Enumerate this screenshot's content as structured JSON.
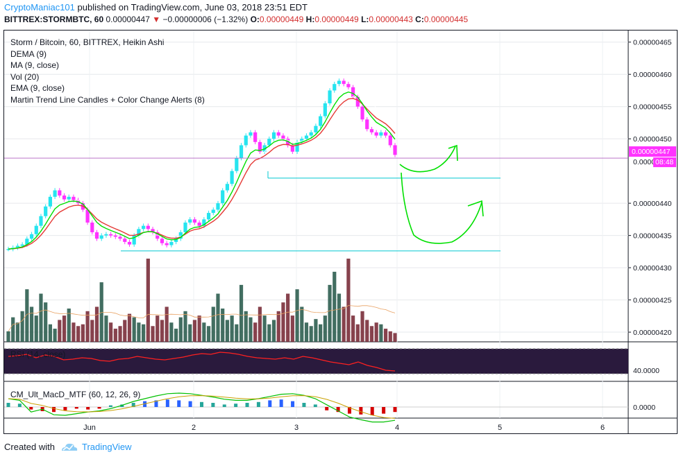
{
  "header": {
    "author": "CryptoManiac101",
    "published": "published on TradingView.com, June 03, 2018 23:51 EDT",
    "symbol": "BITTREX:STORMBTC, 60",
    "last": "0.00000447",
    "change_arrow": "▼",
    "change": "−0.00000006 (−1.32%)",
    "o_label": "O:",
    "o_value": "0.00000449",
    "h_label": "H:",
    "h_value": "0.00000449",
    "l_label": "L:",
    "l_value": "0.00000443",
    "c_label": "C:",
    "c_value": "0.00000445"
  },
  "legend": {
    "title": "Storm / Bitcoin, 60, BITTREX, Heikin Ashi",
    "items": [
      "DEMA (9)",
      "MA (9, close)",
      "Vol (20)",
      "EMA (9, close)",
      "Martin Trend Line Candles + Color Change Alerts (8)"
    ]
  },
  "rsi": {
    "label": "RSI (14, close)",
    "axis_value": "40.0000"
  },
  "macd": {
    "label": "CM_Ult_MacD_MTF (60, 12, 26, 9)",
    "axis_value": "0.0000"
  },
  "price_badge": {
    "value": "0.00000447",
    "countdown": "08:48",
    "obscured_label": "0.0000"
  },
  "footer": {
    "created": "Created with",
    "brand": "TradingView",
    "logo_icon": "tradingview-cloud-icon"
  },
  "colors": {
    "bull": "#26e4ef",
    "bear": "#ff33ff",
    "dema": "#ffffff",
    "ma": "#ffffff",
    "ema": "#e53935",
    "line_green": "#00e000",
    "support": "#00c8d0",
    "grid": "#1c1f2b"
  },
  "chart_data": {
    "type": "candlestick",
    "title": "Storm / Bitcoin, 60, BITTREX, Heikin Ashi",
    "y_ticks": [
      "0.00000465",
      "0.00000460",
      "0.00000455",
      "0.00000450",
      "0.00000440",
      "0.00000435",
      "0.00000430",
      "0.00000425",
      "0.00000420"
    ],
    "x_ticks": [
      "Jun",
      "2",
      "3",
      "4",
      "5",
      "6"
    ],
    "ylim": [
      4.185e-06,
      4.668e-06
    ],
    "current_price": 4.47e-06,
    "support_lines": [
      4.439e-06,
      4.326e-06
    ],
    "close_series": [
      4.329,
      4.331,
      4.334,
      4.336,
      4.345,
      4.352,
      4.365,
      4.38,
      4.395,
      4.41,
      4.42,
      4.412,
      4.406,
      4.41,
      4.405,
      4.4,
      4.39,
      4.37,
      4.355,
      4.345,
      4.35,
      4.352,
      4.35,
      4.348,
      4.345,
      4.34,
      4.336,
      4.35,
      4.36,
      4.365,
      4.36,
      4.355,
      4.345,
      4.338,
      4.335,
      4.34,
      4.345,
      4.355,
      4.37,
      4.375,
      4.37,
      4.365,
      4.375,
      4.385,
      4.39,
      4.4,
      4.42,
      4.43,
      4.45,
      4.47,
      4.49,
      4.505,
      4.51,
      4.495,
      4.48,
      4.49,
      4.5,
      4.51,
      4.505,
      4.5,
      4.49,
      4.48,
      4.495,
      4.5,
      4.505,
      4.51,
      4.52,
      4.535,
      4.555,
      4.575,
      4.585,
      4.59,
      4.585,
      4.58,
      4.565,
      4.55,
      4.53,
      4.515,
      4.51,
      4.505,
      4.51,
      4.505,
      4.49,
      4.475
    ],
    "volume_series": [
      12,
      28,
      22,
      35,
      60,
      40,
      30,
      55,
      45,
      20,
      15,
      25,
      30,
      38,
      22,
      18,
      20,
      35,
      25,
      40,
      68,
      30,
      22,
      15,
      18,
      25,
      32,
      28,
      22,
      20,
      95,
      18,
      30,
      25,
      40,
      22,
      15,
      28,
      35,
      20,
      25,
      30,
      22,
      18,
      40,
      55,
      38,
      25,
      30,
      20,
      65,
      35,
      28,
      22,
      40,
      30,
      20,
      25,
      35,
      45,
      55,
      30,
      60,
      40,
      22,
      18,
      26,
      20,
      30,
      65,
      80,
      55,
      40,
      95,
      30,
      20,
      35,
      25,
      18,
      22,
      20,
      15,
      12,
      10
    ],
    "rsi_series": [
      60,
      61,
      63,
      58,
      62,
      60,
      55,
      56,
      58,
      57,
      54,
      53,
      56,
      57,
      60,
      58,
      56,
      55,
      57,
      59,
      62,
      64,
      63,
      66,
      65,
      63,
      60,
      58,
      57,
      56,
      58,
      56,
      60,
      58,
      55,
      52,
      50,
      48,
      52,
      47,
      44,
      40,
      39
    ],
    "macd_hist": [
      5,
      4,
      -3,
      -5,
      -6,
      -4,
      -2,
      -3,
      -2,
      2,
      3,
      5,
      7,
      8,
      9,
      8,
      7,
      6,
      5,
      3,
      4,
      5,
      6,
      8,
      9,
      7,
      5,
      3,
      -4,
      -6,
      -8,
      -9,
      -10,
      -8,
      -6
    ]
  }
}
